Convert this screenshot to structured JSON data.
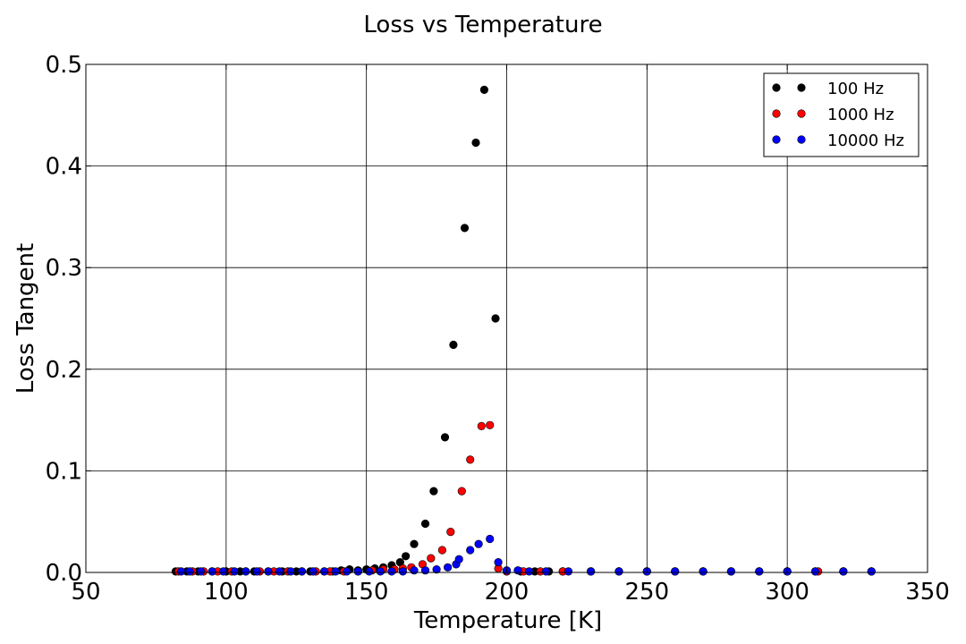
{
  "chart_data": {
    "type": "scatter",
    "title": "Loss vs Temperature",
    "xlabel": "Temperature [K]",
    "ylabel": "Loss Tangent",
    "xlim": [
      50,
      350
    ],
    "ylim": [
      0.0,
      0.5
    ],
    "xticks": [
      50,
      100,
      150,
      200,
      250,
      300,
      350
    ],
    "yticks": [
      0.0,
      0.1,
      0.2,
      0.3,
      0.4,
      0.5
    ],
    "xtick_labels": [
      "50",
      "100",
      "150",
      "200",
      "250",
      "300",
      "350"
    ],
    "ytick_labels": [
      "0.0",
      "0.1",
      "0.2",
      "0.3",
      "0.4",
      "0.5"
    ],
    "grid": true,
    "legend_position": "top-right",
    "series": [
      {
        "name": "100 Hz",
        "color": "#000000",
        "points": [
          [
            82,
            0.001
          ],
          [
            86,
            0.001
          ],
          [
            90,
            0.001
          ],
          [
            95,
            0.001
          ],
          [
            100,
            0.001
          ],
          [
            105,
            0.001
          ],
          [
            110,
            0.001
          ],
          [
            115,
            0.001
          ],
          [
            120,
            0.001
          ],
          [
            125,
            0.001
          ],
          [
            130,
            0.001
          ],
          [
            135,
            0.001
          ],
          [
            138,
            0.001
          ],
          [
            141,
            0.002
          ],
          [
            144,
            0.003
          ],
          [
            147,
            0.002
          ],
          [
            150,
            0.003
          ],
          [
            153,
            0.004
          ],
          [
            156,
            0.005
          ],
          [
            159,
            0.007
          ],
          [
            162,
            0.01
          ],
          [
            164,
            0.016
          ],
          [
            167,
            0.028
          ],
          [
            171,
            0.048
          ],
          [
            174,
            0.08
          ],
          [
            178,
            0.133
          ],
          [
            181,
            0.224
          ],
          [
            185,
            0.339
          ],
          [
            189,
            0.423
          ],
          [
            192,
            0.475
          ],
          [
            196,
            0.25
          ],
          [
            200,
            0.001
          ],
          [
            205,
            0.001
          ],
          [
            210,
            0.001
          ],
          [
            215,
            0.001
          ],
          [
            220,
            0.001
          ],
          [
            230,
            0.001
          ],
          [
            240,
            0.001
          ],
          [
            250,
            0.001
          ],
          [
            260,
            0.001
          ],
          [
            270,
            0.001
          ],
          [
            280,
            0.001
          ],
          [
            290,
            0.001
          ],
          [
            300,
            0.001
          ],
          [
            310,
            0.001
          ],
          [
            320,
            0.001
          ],
          [
            330,
            0.001
          ]
        ]
      },
      {
        "name": "1000 Hz",
        "color": "#ff0000",
        "points": [
          [
            83,
            0.001
          ],
          [
            88,
            0.001
          ],
          [
            92,
            0.001
          ],
          [
            97,
            0.001
          ],
          [
            102,
            0.001
          ],
          [
            107,
            0.001
          ],
          [
            112,
            0.001
          ],
          [
            117,
            0.001
          ],
          [
            122,
            0.001
          ],
          [
            127,
            0.001
          ],
          [
            132,
            0.001
          ],
          [
            137,
            0.001
          ],
          [
            142,
            0.001
          ],
          [
            147,
            0.001
          ],
          [
            152,
            0.002
          ],
          [
            156,
            0.003
          ],
          [
            160,
            0.003
          ],
          [
            163,
            0.004
          ],
          [
            166,
            0.005
          ],
          [
            170,
            0.008
          ],
          [
            173,
            0.014
          ],
          [
            177,
            0.022
          ],
          [
            180,
            0.04
          ],
          [
            184,
            0.08
          ],
          [
            187,
            0.111
          ],
          [
            191,
            0.144
          ],
          [
            194,
            0.145
          ],
          [
            197,
            0.004
          ],
          [
            200,
            0.001
          ],
          [
            206,
            0.001
          ],
          [
            212,
            0.001
          ],
          [
            220,
            0.001
          ],
          [
            230,
            0.001
          ],
          [
            240,
            0.001
          ],
          [
            250,
            0.001
          ],
          [
            260,
            0.001
          ],
          [
            270,
            0.001
          ],
          [
            280,
            0.001
          ],
          [
            290,
            0.001
          ],
          [
            300,
            0.001
          ],
          [
            311,
            0.001
          ],
          [
            320,
            0.001
          ],
          [
            330,
            0.001
          ]
        ]
      },
      {
        "name": "10000 Hz",
        "color": "#0000ff",
        "points": [
          [
            84,
            0.001
          ],
          [
            87,
            0.001
          ],
          [
            91,
            0.001
          ],
          [
            95,
            0.001
          ],
          [
            99,
            0.001
          ],
          [
            103,
            0.001
          ],
          [
            107,
            0.001
          ],
          [
            111,
            0.001
          ],
          [
            115,
            0.001
          ],
          [
            119,
            0.001
          ],
          [
            123,
            0.001
          ],
          [
            127,
            0.001
          ],
          [
            131,
            0.001
          ],
          [
            135,
            0.001
          ],
          [
            139,
            0.001
          ],
          [
            143,
            0.001
          ],
          [
            147,
            0.001
          ],
          [
            151,
            0.001
          ],
          [
            155,
            0.001
          ],
          [
            159,
            0.001
          ],
          [
            163,
            0.001
          ],
          [
            167,
            0.002
          ],
          [
            171,
            0.002
          ],
          [
            175,
            0.003
          ],
          [
            179,
            0.005
          ],
          [
            182,
            0.008
          ],
          [
            183,
            0.013
          ],
          [
            187,
            0.022
          ],
          [
            190,
            0.028
          ],
          [
            194,
            0.033
          ],
          [
            197,
            0.01
          ],
          [
            200,
            0.002
          ],
          [
            204,
            0.002
          ],
          [
            208,
            0.001
          ],
          [
            214,
            0.001
          ],
          [
            222,
            0.001
          ],
          [
            230,
            0.001
          ],
          [
            240,
            0.001
          ],
          [
            250,
            0.001
          ],
          [
            260,
            0.001
          ],
          [
            270,
            0.001
          ],
          [
            280,
            0.001
          ],
          [
            290,
            0.001
          ],
          [
            300,
            0.001
          ],
          [
            310,
            0.001
          ],
          [
            320,
            0.001
          ],
          [
            330,
            0.001
          ]
        ]
      }
    ]
  }
}
